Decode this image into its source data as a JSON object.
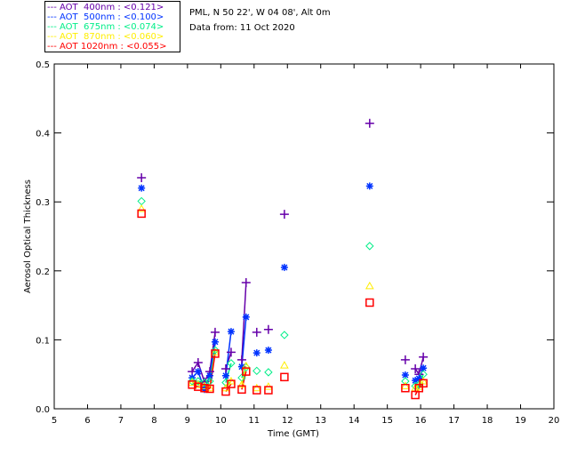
{
  "header": {
    "site": "PML, N 50 22', W 04 08', Alt 0m",
    "date": "Data from: 11 Oct 2020"
  },
  "chart_data": {
    "type": "scatter",
    "title": "",
    "xlabel": "Time (GMT)",
    "ylabel": "Aerosol Optical Thickness",
    "xlim": [
      5,
      20
    ],
    "ylim": [
      0,
      0.5
    ],
    "xticks": [
      "5",
      "6",
      "7",
      "8",
      "9",
      "10",
      "11",
      "12",
      "13",
      "14",
      "15",
      "16",
      "17",
      "18",
      "19",
      "20"
    ],
    "yticks": [
      "0.0",
      "0.1",
      "0.2",
      "0.3",
      "0.4",
      "0.5"
    ],
    "legend_position": "top-left",
    "x": [
      7.62,
      9.14,
      9.32,
      9.51,
      9.67,
      9.83,
      10.15,
      10.31,
      10.63,
      10.76,
      11.08,
      11.43,
      11.91,
      14.47,
      15.54,
      15.84,
      15.95,
      16.08
    ],
    "series": [
      {
        "name": "AOT  400nm : <0.121>",
        "color": "#6600aa",
        "marker": "plus",
        "values": [
          0.335,
          0.054,
          0.067,
          0.039,
          0.054,
          0.111,
          0.058,
          0.082,
          0.071,
          0.183,
          0.111,
          0.115,
          0.282,
          0.414,
          0.071,
          0.058,
          0.05,
          0.075
        ]
      },
      {
        "name": "AOT  500nm : <0.100>",
        "color": "#0033ff",
        "marker": "asterisk",
        "values": [
          0.32,
          0.045,
          0.054,
          0.028,
          0.048,
          0.097,
          0.048,
          0.112,
          0.061,
          0.133,
          0.081,
          0.085,
          0.205,
          0.323,
          0.049,
          0.041,
          0.044,
          0.059
        ]
      },
      {
        "name": "AOT  675nm : <0.074>",
        "color": "#00ee88",
        "marker": "diamond",
        "values": [
          0.301,
          0.04,
          0.04,
          0.038,
          0.04,
          0.085,
          0.038,
          0.066,
          0.045,
          0.06,
          0.055,
          0.053,
          0.107,
          0.236,
          0.04,
          0.033,
          0.035,
          0.05
        ]
      },
      {
        "name": "AOT  870nm : <0.060>",
        "color": "#ffee00",
        "marker": "triangle",
        "values": [
          0.29,
          0.038,
          0.035,
          0.033,
          0.03,
          0.082,
          0.03,
          0.04,
          0.035,
          0.062,
          0.03,
          0.032,
          0.063,
          0.178,
          0.033,
          0.03,
          0.032,
          0.04
        ]
      },
      {
        "name": "AOT 1020nm : <0.055>",
        "color": "#ff0000",
        "marker": "square",
        "values": [
          0.283,
          0.035,
          0.032,
          0.03,
          0.029,
          0.08,
          0.025,
          0.036,
          0.028,
          0.054,
          0.027,
          0.027,
          0.046,
          0.154,
          0.03,
          0.02,
          0.03,
          0.037
        ]
      }
    ]
  }
}
